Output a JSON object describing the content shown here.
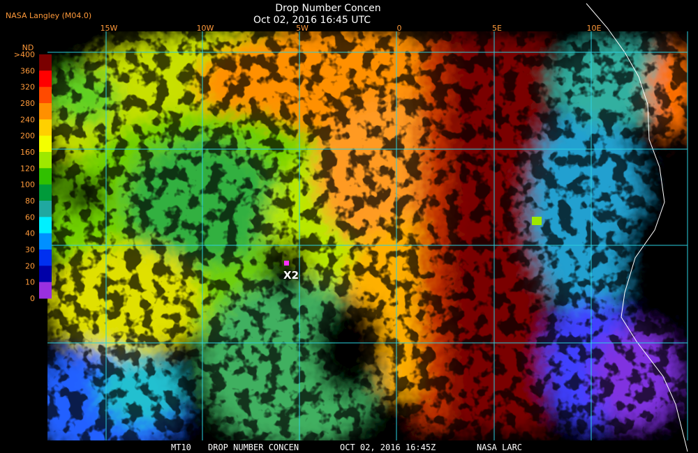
{
  "header": {
    "title": "Drop Number Concen",
    "datetime": "Oct 02, 2016 16:45 UTC",
    "source": "NASA Langley (M04.0)"
  },
  "longitudes": [
    "15W",
    "10W",
    "5W",
    "0",
    "5E",
    "10E"
  ],
  "legend": {
    "title": "ND",
    "labels": [
      ">400",
      "360",
      "320",
      "280",
      "240",
      "200",
      "160",
      "120",
      "100",
      "80",
      "60",
      "40",
      "30",
      "20",
      "10",
      "0"
    ],
    "colors": [
      "#7a0000",
      "#ff0000",
      "#ff4a00",
      "#ff9000",
      "#ffd000",
      "#f4ff00",
      "#9ee800",
      "#30c000",
      "#009a3a",
      "#20a8a0",
      "#00f0ff",
      "#0090ff",
      "#0030f0",
      "#0000a8",
      "#9a30e0"
    ]
  },
  "marker": {
    "label": "X2"
  },
  "footer": [
    "MT10",
    "DROP NUMBER CONCEN",
    "OCT 02, 2016 16:45Z",
    "NASA LARC"
  ]
}
